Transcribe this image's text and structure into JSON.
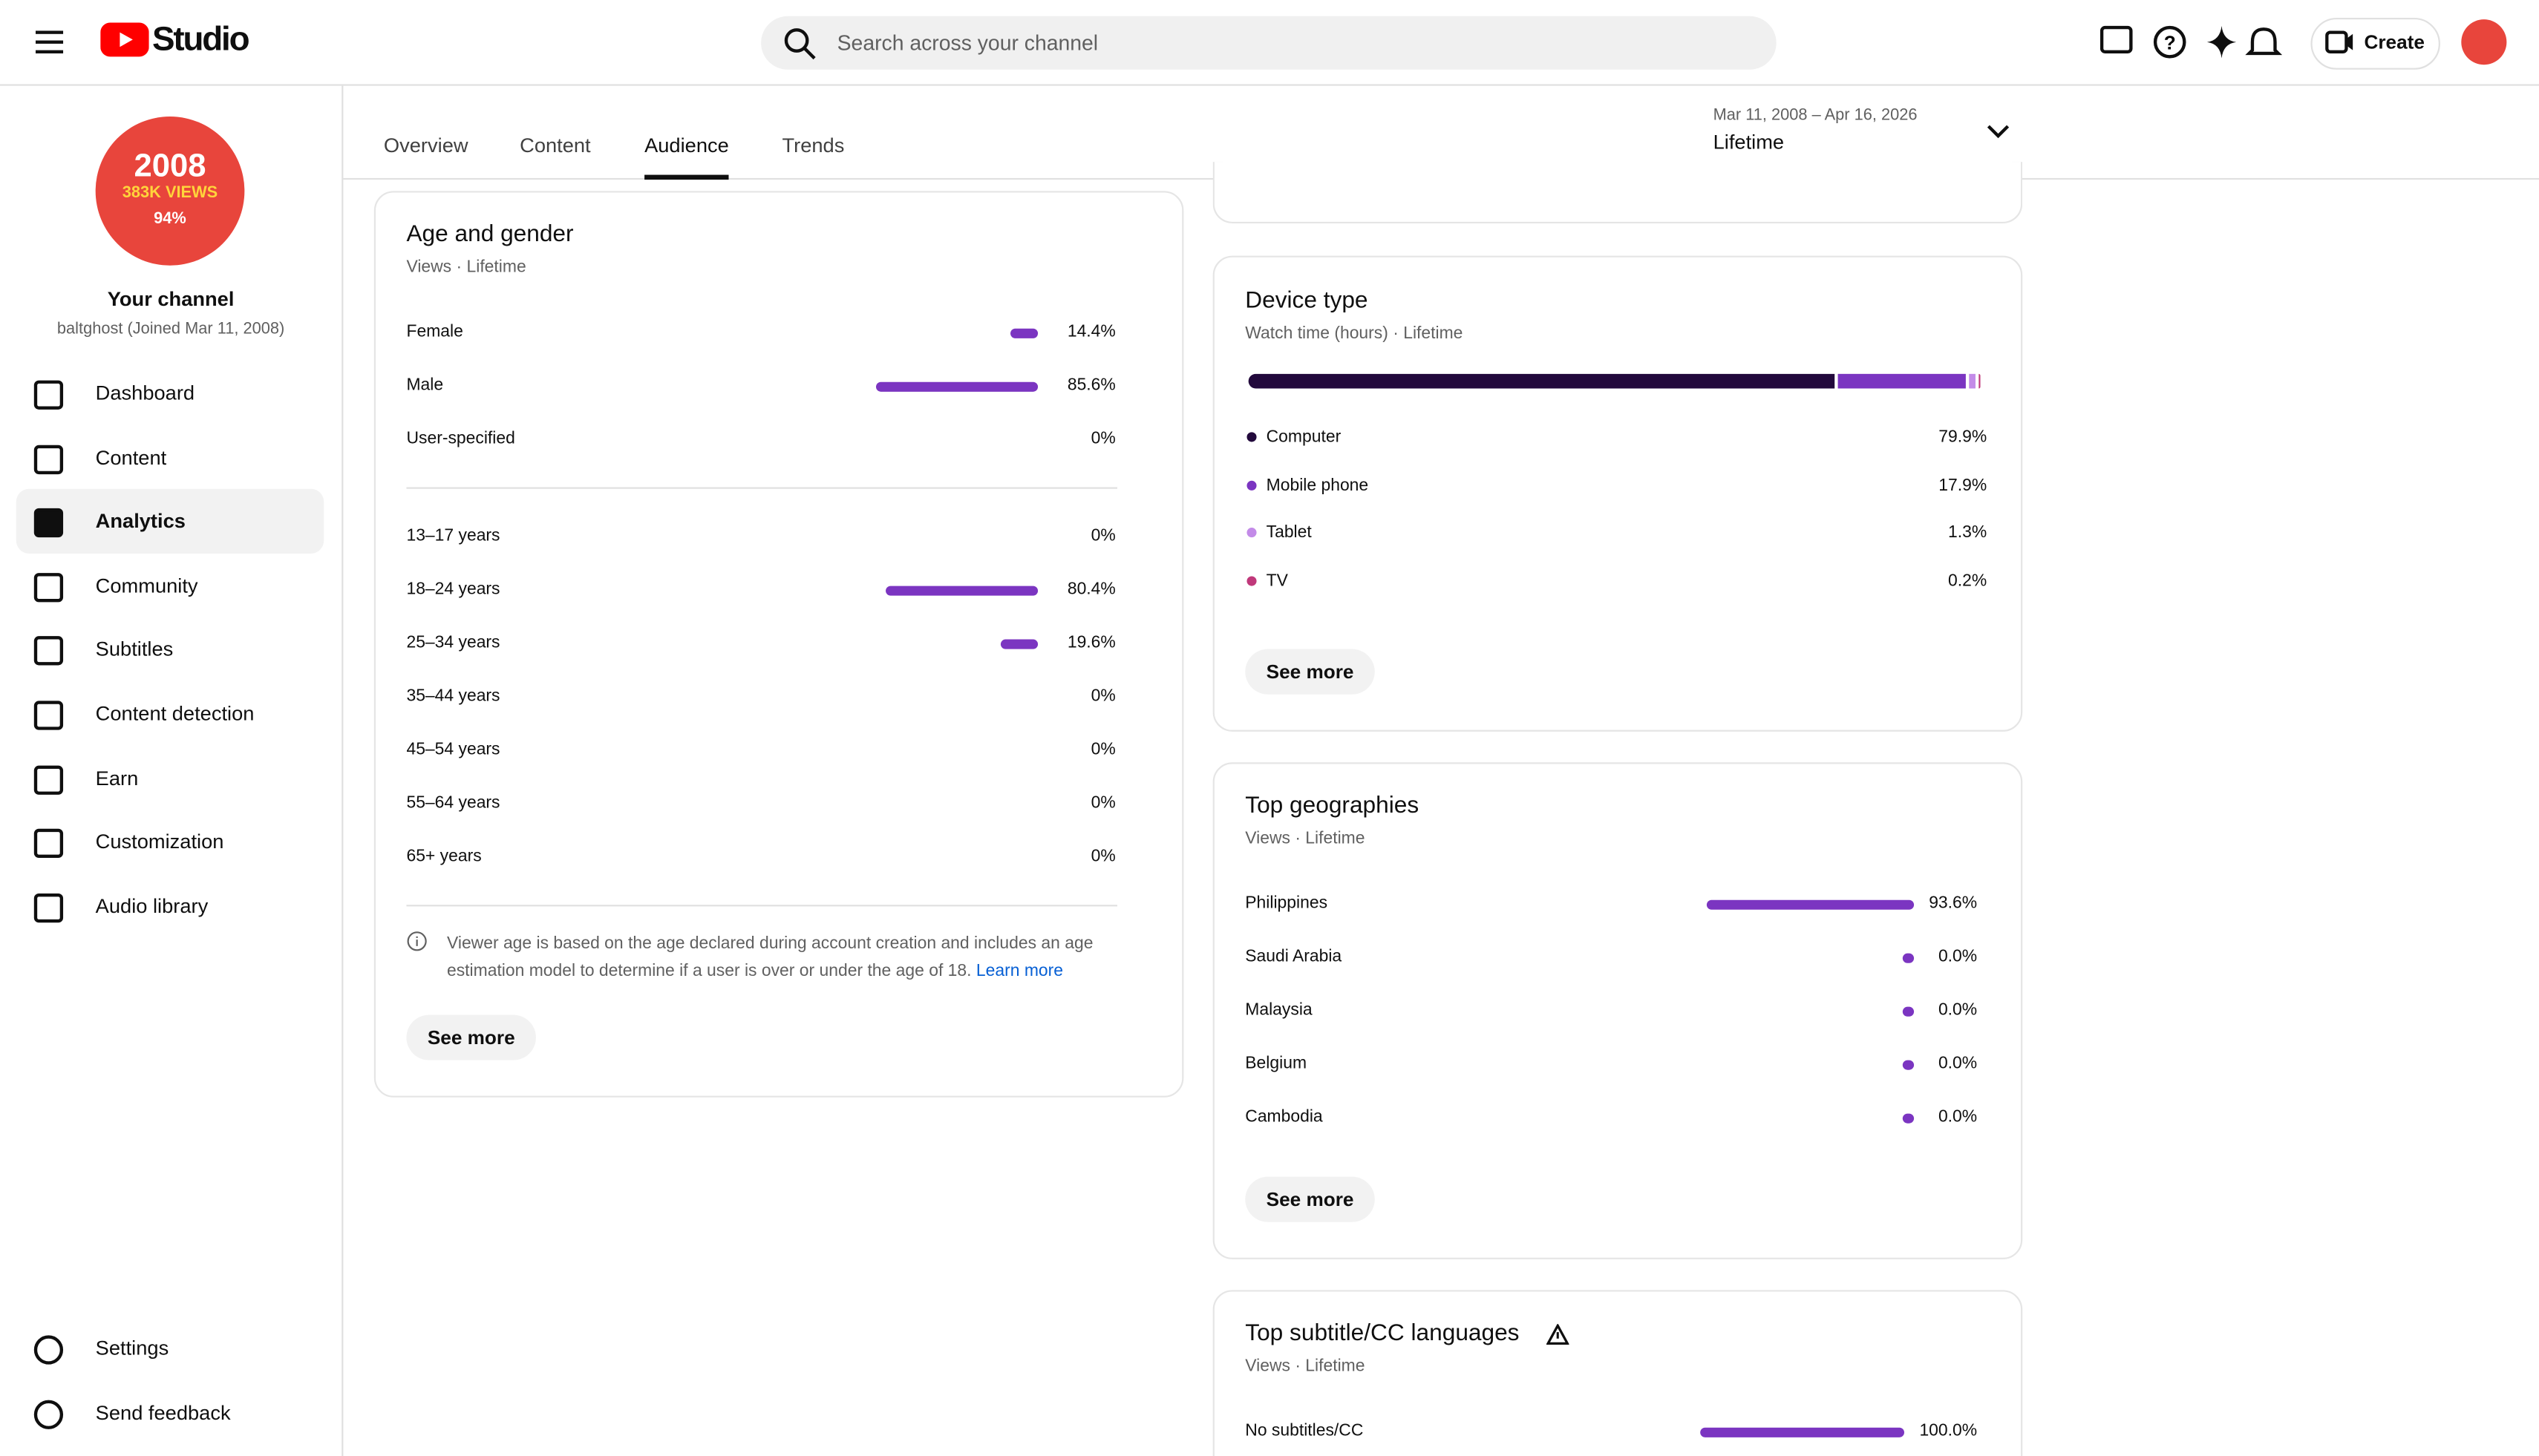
{
  "header": {
    "logo": "Studio",
    "search_placeholder": "Search across your channel",
    "create": "Create"
  },
  "channel": {
    "avatar_lines": [
      "2008",
      "383K VIEWS",
      "94%"
    ],
    "name": "Your channel",
    "handle": "baltghost (Joined Mar 11, 2008)"
  },
  "nav": [
    "Dashboard",
    "Content",
    "Analytics",
    "Community",
    "Subtitles",
    "Content detection",
    "Earn",
    "Customization",
    "Audio library"
  ],
  "nav_active": 2,
  "nav_bottom": [
    "Settings",
    "Send feedback"
  ],
  "tabs": [
    "Overview",
    "Content",
    "Audience",
    "Trends"
  ],
  "tab_active": 2,
  "date_range": {
    "dates": "Mar 11, 2008 – Apr 16, 2026",
    "label": "Lifetime"
  },
  "age_gender": {
    "title": "Age and gender",
    "subtitle": "Views · Lifetime",
    "color": "#7b35c1",
    "gender": {
      "categories": [
        "Female",
        "Male",
        "User-specified"
      ],
      "values": [
        14.4,
        85.6,
        0
      ],
      "value_labels": [
        "14.4%",
        "85.6%",
        "0%"
      ]
    },
    "age": {
      "categories": [
        "13–17 years",
        "18–24 years",
        "25–34 years",
        "35–44 years",
        "45–54 years",
        "55–64 years",
        "65+ years"
      ],
      "values": [
        0,
        80.4,
        19.6,
        0,
        0,
        0,
        0
      ],
      "value_labels": [
        "0%",
        "80.4%",
        "19.6%",
        "0%",
        "0%",
        "0%",
        "0%"
      ]
    },
    "note": "Viewer age is based on the age declared during account creation and includes an age estimation model to determine if a user is over or under the age of 18.",
    "learn_more": "Learn more",
    "see_more": "See more"
  },
  "device_type": {
    "title": "Device type",
    "subtitle": "Watch time (hours) · Lifetime",
    "series": [
      {
        "name": "Computer",
        "color": "#22093c",
        "value": 79.9,
        "value_label": "79.9%"
      },
      {
        "name": "Mobile phone",
        "color": "#7b35c1",
        "value": 17.9,
        "value_label": "17.9%"
      },
      {
        "name": "Tablet",
        "color": "#c38be8",
        "value": 1.3,
        "value_label": "1.3%"
      },
      {
        "name": "TV",
        "color": "#c0387a",
        "value": 0.2,
        "value_label": "0.2%"
      }
    ],
    "see_more": "See more"
  },
  "top_geographies": {
    "title": "Top geographies",
    "subtitle": "Views · Lifetime",
    "color": "#7b35c1",
    "categories": [
      "Philippines",
      "Saudi Arabia",
      "Malaysia",
      "Belgium",
      "Cambodia"
    ],
    "values": [
      93.6,
      0,
      0,
      0,
      0
    ],
    "value_labels": [
      "93.6%",
      "0.0%",
      "0.0%",
      "0.0%",
      "0.0%"
    ],
    "see_more": "See more"
  },
  "top_subtitle_languages": {
    "title": "Top subtitle/CC languages",
    "subtitle": "Views · Lifetime",
    "color": "#7b35c1",
    "categories": [
      "No subtitles/CC"
    ],
    "values": [
      100
    ],
    "value_labels": [
      "100.0%"
    ]
  }
}
